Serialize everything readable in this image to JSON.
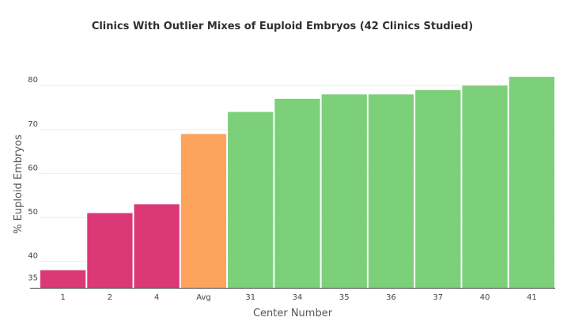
{
  "chart_data": {
    "type": "bar",
    "title": "Clinics With Outlier Mixes of Euploid Embryos (42 Clinics Studied)",
    "xlabel": "Center Number",
    "ylabel": "% Euploid Embryos",
    "categories": [
      "1",
      "2",
      "4",
      "Avg",
      "31",
      "34",
      "35",
      "36",
      "37",
      "40",
      "41"
    ],
    "values": [
      38,
      51,
      53,
      69,
      74,
      77,
      78,
      78,
      79,
      80,
      82
    ],
    "colors": [
      "#dc3878",
      "#dc3878",
      "#dc3878",
      "#fda35c",
      "#7dd07a",
      "#7dd07a",
      "#7dd07a",
      "#7dd07a",
      "#7dd07a",
      "#7dd07a",
      "#7dd07a"
    ],
    "ylim": [
      34,
      84
    ],
    "yticks": [
      35,
      40,
      50,
      60,
      70,
      80
    ],
    "grid": true,
    "legend": false
  }
}
